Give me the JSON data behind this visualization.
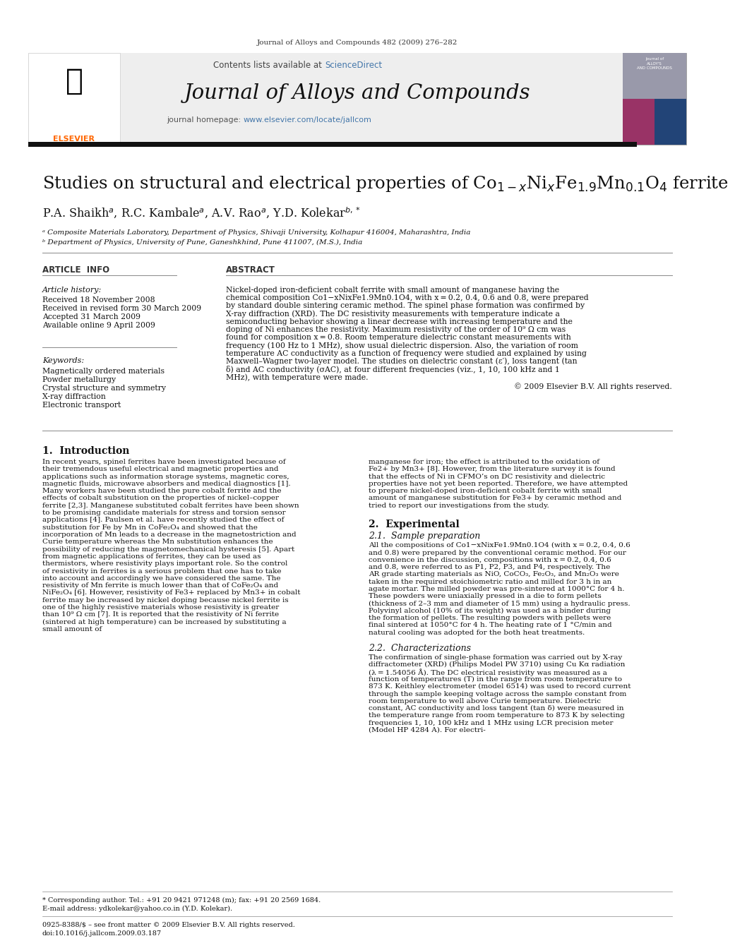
{
  "page_width": 9.92,
  "page_height": 13.23,
  "bg_color": "#ffffff",
  "journal_ref": "Journal of Alloys and Compounds 482 (2009) 276–282",
  "header_bg": "#eeeeee",
  "sciencedirect_color": "#4477aa",
  "journal_name": "Journal of Alloys and Compounds",
  "journal_url_color": "#4477aa",
  "title_text": "Studies on structural and electrical properties of Co$_{1-x}$Ni$_{x}$Fe$_{1.9}$Mn$_{0.1}$O$_{4}$ ferrite",
  "authors_text": "P.A. Shaikh$^{a}$, R.C. Kambale$^{a}$, A.V. Rao$^{a}$, Y.D. Kolekar$^{b,*}$",
  "affil1": "ᵃ Composite Materials Laboratory, Department of Physics, Shivaji University, Kolhapur 416004, Maharashtra, India",
  "affil2": "ᵇ Department of Physics, University of Pune, Ganeshkhind, Pune 411007, (M.S.), India",
  "article_info_header": "ARTICLE  INFO",
  "abstract_header": "ABSTRACT",
  "article_history_label": "Article history:",
  "article_history": "Received 18 November 2008\nReceived in revised form 30 March 2009\nAccepted 31 March 2009\nAvailable online 9 April 2009",
  "keywords_label": "Keywords:",
  "keywords": "Magnetically ordered materials\nPowder metallurgy\nCrystal structure and symmetry\nX-ray diffraction\nElectronic transport",
  "abstract_text": "Nickel-doped iron-deficient cobalt ferrite with small amount of manganese having the chemical composition Co1−xNixFe1.9Mn0.1O4, with x = 0.2, 0.4, 0.6 and 0.8, were prepared by standard double sintering ceramic method. The spinel phase formation was confirmed by X-ray diffraction (XRD). The DC resistivity measurements with temperature indicate a semiconducting behavior showing a linear decrease with increasing temperature and the doping of Ni enhances the resistivity. Maximum resistivity of the order of 10⁹ Ω cm was found for composition x = 0.8. Room temperature dielectric constant measurements with frequency (100 Hz to 1 MHz), show usual dielectric dispersion. Also, the variation of room temperature AC conductivity as a function of frequency were studied and explained by using Maxwell–Wagner two-layer model. The studies on dielectric constant (ε′), loss tangent (tan δ) and AC conductivity (σAC), at four different frequencies (viz., 1, 10, 100 kHz and 1 MHz), with temperature were made.",
  "copyright": "© 2009 Elsevier B.V. All rights reserved.",
  "section1_title": "1.  Introduction",
  "section1_col1": "    In recent years, spinel ferrites have been investigated because of their tremendous useful electrical and magnetic properties and applications such as information storage systems, magnetic cores, magnetic fluids, microwave absorbers and medical diagnostics [1]. Many workers have been studied the pure cobalt ferrite and the effects of cobalt substitution on the properties of nickel–copper ferrite [2,3]. Manganese substituted cobalt ferrites have been shown to be promising candidate materials for stress and torsion sensor applications [4]. Paulsen et al. have recently studied the effect of substitution for Fe by Mn in CoFe₂O₄ and showed that the incorporation of Mn leads to a decrease in the magnetostriction and Curie temperature whereas the Mn substitution enhances the possibility of reducing the magnetomechanical hysteresis [5]. Apart from magnetic applications of ferrites, they can be used as thermistors, where resistivity plays important role. So the control of resistivity in ferrites is a serious problem that one has to take into account and accordingly we have considered the same. The resistivity of Mn ferrite is much lower than that of CoFe₂O₄ and NiFe₂O₄ [6]. However, resistivity of Fe3+ replaced by Mn3+ in cobalt ferrite may be increased by nickel doping because nickel ferrite is one of the highly resistive materials whose resistivity is greater than 10⁹ Ω cm [7]. It is reported that the resistivity of Ni ferrite (sintered at high temperature) can be increased by substituting a small amount of",
  "section1_col2": "manganese for iron; the effect is attributed to the oxidation of Fe2+ by Mn3+ [8]. However, from the literature survey it is found that the effects of Ni in CFMO’s on DC resistivity and dielectric properties have not yet been reported. Therefore, we have attempted to prepare nickel-doped iron-deficient cobalt ferrite with small amount of manganese substitution for Fe3+ by ceramic method and tried to report our investigations from the study.",
  "section2_title": "2.  Experimental",
  "section21_title": "2.1.  Sample preparation",
  "section21_text": "    All the compositions of Co1−xNixFe1.9Mn0.1O4 (with x = 0.2, 0.4, 0.6 and 0.8) were prepared by the conventional ceramic method. For our convenience in the discussion, compositions with x = 0.2, 0.4, 0.6 and 0.8, were referred to as P1, P2, P3, and P4, respectively. The AR grade starting materials as NiO, CoCO₃, Fe₂O₃, and Mn₂O₃ were taken in the required stoichiometric ratio and milled for 3 h in an agate mortar. The milled powder was pre-sintered at 1000°C for 4 h. These powders were uniaxially pressed in a die to form pellets (thickness of 2–3 mm and diameter of 15 mm) using a hydraulic press. Polyvinyl alcohol (10% of its weight) was used as a binder during the formation of pellets. The resulting powders with pellets were final sintered at 1050°C for 4 h. The heating rate of 1 °C/min and natural cooling was adopted for the both heat treatments.",
  "section22_title": "2.2.  Characterizations",
  "section22_text": "    The confirmation of single-phase formation was carried out by X-ray diffractometer (XRD) (Philips Model PW 3710) using Cu Kα radiation (λ = 1.54056 Å).\n    The DC electrical resistivity was measured as a function of temperatures (T) in the range from room temperature to 873 K. Keithley electrometer (model 6514) was used to record current through the sample keeping voltage across the sample constant from room temperature to well above Curie temperature.\n    Dielectric constant, AC conductivity and loss tangent (tan δ) were measured in the temperature range from room temperature to 873 K by selecting frequencies 1, 10, 100 kHz and 1 MHz using LCR precision meter (Model HP 4284 A). For electri-",
  "footnote_star": "* Corresponding author. Tel.: +91 20 9421 971248 (m); fax: +91 20 2569 1684.",
  "footnote_email": "E-mail address: ydkolekar@yahoo.co.in (Y.D. Kolekar).",
  "footer1": "0925-8388/$ – see front matter © 2009 Elsevier B.V. All rights reserved.",
  "footer2": "doi:10.1016/j.jallcom.2009.03.187"
}
